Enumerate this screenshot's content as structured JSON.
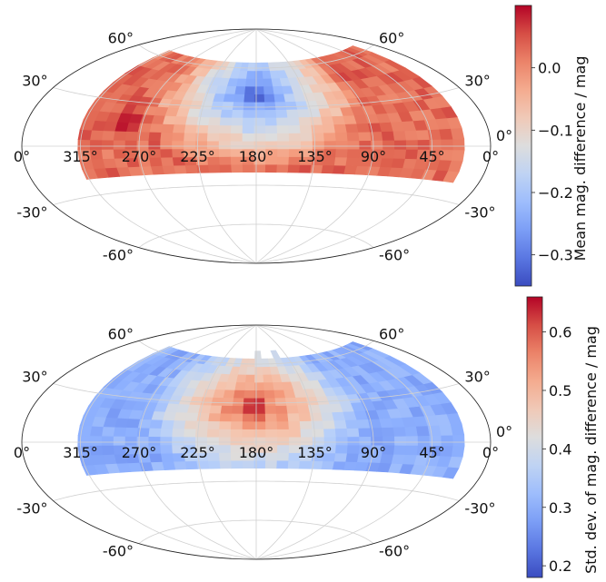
{
  "chart_data": [
    {
      "type": "heatmap",
      "projection": "aitoff",
      "title": "",
      "colormap": "coolwarm",
      "colorbar": {
        "label": "Mean mag. difference / mag",
        "range": [
          -0.35,
          0.1
        ],
        "ticks": [
          0.0,
          -0.1,
          -0.2,
          -0.3
        ],
        "tick_labels": [
          "0.0",
          "−0.1",
          "−0.2",
          "−0.3"
        ]
      },
      "lon_tick_labels": [
        "0°",
        "315°",
        "270°",
        "225°",
        "180°",
        "135°",
        "90°",
        "45°",
        "0°"
      ],
      "lat_tick_labels_left": [
        "60°",
        "30°",
        "-30°",
        "-60°"
      ],
      "lat_tick_labels_right": [
        "60°",
        "30°",
        "0°",
        "-30°",
        "-60°"
      ],
      "grid": true,
      "coverage": {
        "lon_range": [
          20,
          315
        ],
        "lat_range": [
          -20,
          65
        ]
      },
      "pattern": "center-low",
      "center": {
        "lon": 180,
        "lat": 40,
        "value": -0.34
      },
      "edge_value": 0.03,
      "hotspots": [
        {
          "lon": 285,
          "lat": 20,
          "value": 0.1
        },
        {
          "lon": 85,
          "lat": 55,
          "value": 0.08
        }
      ]
    },
    {
      "type": "heatmap",
      "projection": "aitoff",
      "title": "",
      "colormap": "coolwarm",
      "colorbar": {
        "label": "Std. dev. of mag. difference / mag",
        "range": [
          0.18,
          0.66
        ],
        "ticks": [
          0.6,
          0.5,
          0.4,
          0.3,
          0.2
        ],
        "tick_labels": [
          "0.6",
          "0.5",
          "0.4",
          "0.3",
          "0.2"
        ]
      },
      "lon_tick_labels": [
        "0°",
        "315°",
        "270°",
        "225°",
        "180°",
        "135°",
        "90°",
        "45°",
        "0°"
      ],
      "lat_tick_labels_left": [
        "60°",
        "30°",
        "-30°",
        "-60°"
      ],
      "lat_tick_labels_right": [
        "60°",
        "30°",
        "0°",
        "-30°",
        "-60°"
      ],
      "grid": true,
      "coverage": {
        "lon_range": [
          20,
          315
        ],
        "lat_range": [
          -20,
          65
        ]
      },
      "pattern": "center-high",
      "center": {
        "lon": 182,
        "lat": 28,
        "value": 0.64
      },
      "edge_value": 0.3,
      "hotspots": []
    }
  ]
}
